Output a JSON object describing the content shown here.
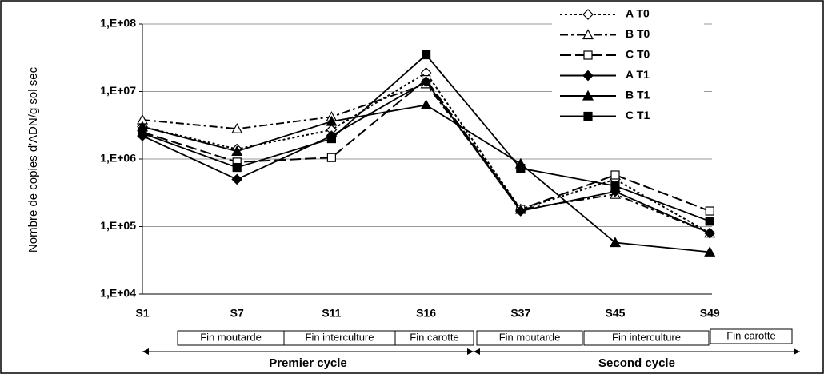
{
  "chart_data": {
    "type": "line",
    "y_label": "Nombre de copies d'ADN/g sol sec",
    "categories": [
      "S1",
      "S7",
      "S11",
      "S16",
      "S37",
      "S45",
      "S49"
    ],
    "yscale": "log",
    "ylim": [
      10000,
      100000000
    ],
    "yticks": [
      {
        "value": 10000,
        "label": "1,E+04"
      },
      {
        "value": 100000,
        "label": "1,E+05"
      },
      {
        "value": 1000000,
        "label": "1,E+06"
      },
      {
        "value": 10000000,
        "label": "1,E+07"
      },
      {
        "value": 100000000,
        "label": "1,E+08"
      }
    ],
    "grid": true,
    "legend": "top-right",
    "series": [
      {
        "name": "A T0",
        "color": "#000000",
        "dash": "dotted",
        "marker": "diamond-open",
        "values": [
          3000000,
          1400000,
          2700000,
          19000000,
          180000,
          500000,
          80000
        ]
      },
      {
        "name": "B T0",
        "color": "#000000",
        "dash": "dash-dot",
        "marker": "triangle-open",
        "values": [
          3800000,
          2800000,
          4200000,
          13000000,
          180000,
          300000,
          80000
        ]
      },
      {
        "name": "C T0",
        "color": "#000000",
        "dash": "long-dash",
        "marker": "square-open",
        "values": [
          2500000,
          900000,
          1050000,
          15000000,
          180000,
          580000,
          170000
        ]
      },
      {
        "name": "A T1",
        "color": "#000000",
        "dash": "solid",
        "marker": "diamond-filled",
        "values": [
          2200000,
          500000,
          2200000,
          14000000,
          170000,
          330000,
          80000
        ]
      },
      {
        "name": "B T1",
        "color": "#000000",
        "dash": "solid",
        "marker": "triangle-filled",
        "values": [
          3000000,
          1300000,
          3600000,
          6300000,
          850000,
          58000,
          42000
        ]
      },
      {
        "name": "C T1",
        "color": "#000000",
        "dash": "solid",
        "marker": "square-filled",
        "values": [
          2400000,
          750000,
          2000000,
          35000000,
          730000,
          400000,
          120000
        ]
      }
    ],
    "phases": [
      "Fin moutarde",
      "Fin interculture",
      "Fin carotte",
      "Fin moutarde",
      "Fin interculture",
      "Fin carotte"
    ],
    "cycles": [
      "Premier cycle",
      "Second cycle"
    ]
  }
}
